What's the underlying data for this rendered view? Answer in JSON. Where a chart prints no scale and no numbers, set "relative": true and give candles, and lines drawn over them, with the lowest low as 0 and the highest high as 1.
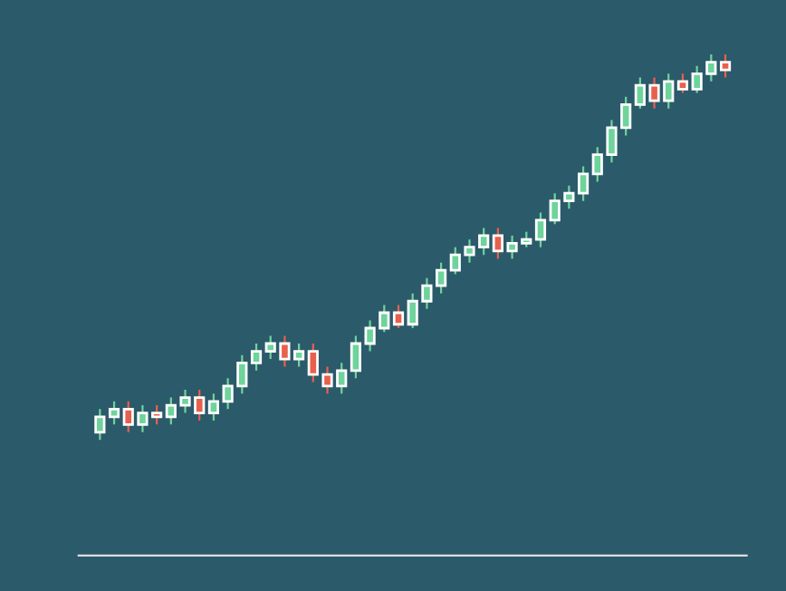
{
  "chart_data": {
    "type": "candlestick",
    "relative": true,
    "categories": [
      null,
      null,
      null,
      null,
      null,
      null,
      null,
      null,
      null,
      null,
      null,
      null,
      null,
      null,
      null,
      null,
      null,
      null,
      null,
      null,
      null,
      null,
      null,
      null,
      null,
      null,
      null,
      null,
      null,
      null,
      null,
      null,
      null,
      null,
      null,
      null,
      null,
      null,
      null,
      null,
      null,
      null,
      null,
      null,
      null
    ],
    "ohlc": [
      [
        0.02,
        0.08,
        0.0,
        0.06
      ],
      [
        0.06,
        0.1,
        0.04,
        0.08
      ],
      [
        0.08,
        0.1,
        0.02,
        0.04
      ],
      [
        0.04,
        0.09,
        0.02,
        0.07
      ],
      [
        0.07,
        0.09,
        0.04,
        0.06
      ],
      [
        0.06,
        0.11,
        0.04,
        0.09
      ],
      [
        0.09,
        0.13,
        0.07,
        0.11
      ],
      [
        0.11,
        0.13,
        0.05,
        0.07
      ],
      [
        0.07,
        0.12,
        0.05,
        0.1
      ],
      [
        0.1,
        0.16,
        0.08,
        0.14
      ],
      [
        0.14,
        0.22,
        0.12,
        0.2
      ],
      [
        0.2,
        0.25,
        0.18,
        0.23
      ],
      [
        0.23,
        0.27,
        0.21,
        0.25
      ],
      [
        0.25,
        0.27,
        0.19,
        0.21
      ],
      [
        0.21,
        0.25,
        0.19,
        0.23
      ],
      [
        0.23,
        0.25,
        0.15,
        0.17
      ],
      [
        0.17,
        0.19,
        0.12,
        0.14
      ],
      [
        0.14,
        0.2,
        0.12,
        0.18
      ],
      [
        0.18,
        0.27,
        0.16,
        0.25
      ],
      [
        0.25,
        0.31,
        0.23,
        0.29
      ],
      [
        0.29,
        0.35,
        0.28,
        0.33
      ],
      [
        0.33,
        0.35,
        0.29,
        0.3
      ],
      [
        0.3,
        0.38,
        0.29,
        0.36
      ],
      [
        0.36,
        0.42,
        0.34,
        0.4
      ],
      [
        0.4,
        0.46,
        0.38,
        0.44
      ],
      [
        0.44,
        0.5,
        0.43,
        0.48
      ],
      [
        0.48,
        0.52,
        0.46,
        0.5
      ],
      [
        0.5,
        0.55,
        0.48,
        0.53
      ],
      [
        0.53,
        0.55,
        0.47,
        0.49
      ],
      [
        0.49,
        0.53,
        0.47,
        0.51
      ],
      [
        0.51,
        0.54,
        0.5,
        0.52
      ],
      [
        0.52,
        0.59,
        0.5,
        0.57
      ],
      [
        0.57,
        0.64,
        0.56,
        0.62
      ],
      [
        0.62,
        0.66,
        0.6,
        0.64
      ],
      [
        0.64,
        0.71,
        0.62,
        0.69
      ],
      [
        0.69,
        0.76,
        0.67,
        0.74
      ],
      [
        0.74,
        0.83,
        0.72,
        0.81
      ],
      [
        0.81,
        0.89,
        0.79,
        0.87
      ],
      [
        0.87,
        0.94,
        0.86,
        0.92
      ],
      [
        0.92,
        0.94,
        0.86,
        0.88
      ],
      [
        0.88,
        0.95,
        0.86,
        0.93
      ],
      [
        0.93,
        0.95,
        0.9,
        0.91
      ],
      [
        0.91,
        0.97,
        0.9,
        0.95
      ],
      [
        0.95,
        1.0,
        0.93,
        0.98
      ],
      [
        0.98,
        1.0,
        0.94,
        0.96
      ]
    ]
  }
}
